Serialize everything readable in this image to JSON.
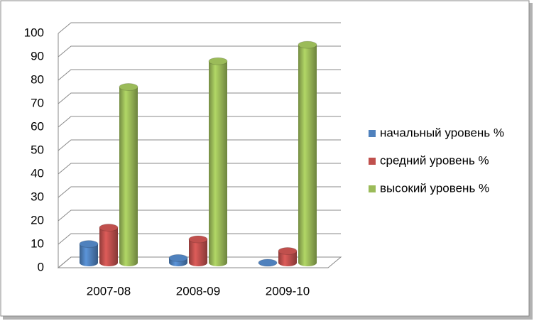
{
  "chart_data": {
    "type": "bar",
    "categories": [
      "2007-08",
      "2008-09",
      "2009-10"
    ],
    "series": [
      {
        "name": "начальный уровень %",
        "color": "#4f81bd",
        "values": [
          8,
          2,
          0
        ]
      },
      {
        "name": "средний уровень %",
        "color": "#c0504d",
        "values": [
          15,
          10,
          5
        ]
      },
      {
        "name": "высокий уровень %",
        "color": "#9bbb59",
        "values": [
          75,
          86,
          93
        ]
      }
    ],
    "ylim": [
      0,
      100
    ],
    "yticks": [
      0,
      10,
      20,
      30,
      40,
      50,
      60,
      70,
      80,
      90,
      100
    ],
    "grid": true,
    "legend": "right"
  }
}
